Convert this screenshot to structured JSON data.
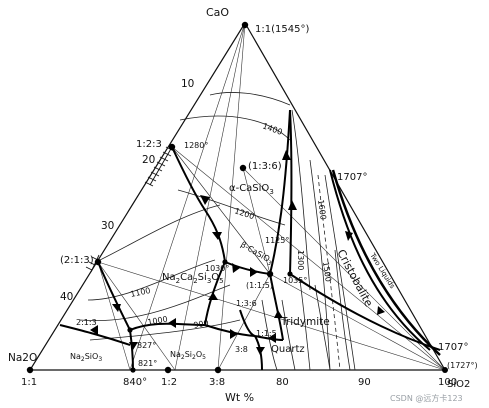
{
  "diagram": {
    "corners": {
      "top": "CaO",
      "left": "Na2O",
      "right": "SiO2"
    },
    "top_point_label": "1:1(1545°)",
    "axis_title": "Wt %",
    "left_ticks": [
      "10",
      "20",
      "30",
      "40"
    ],
    "bottom_ticks": [
      "1:1",
      "840°",
      "1:2",
      "3:8",
      "80",
      "90",
      "100"
    ],
    "right_temps": {
      "upper": "1707°",
      "lower": "1707°",
      "corner": "(1727°)"
    },
    "compounds": {
      "c123": "1:2:3",
      "c1280": "1280°",
      "c136": "(1:3:6)",
      "c213": "(2:1:3)",
      "alpha": "α-CaSiO",
      "alpha_sub": "3",
      "beta": "β-CaSiO",
      "beta_sub": "3",
      "nacaso_main": "Na",
      "nacaso_a": "2",
      "nacaso_b": "Ca",
      "nacaso_c": "2",
      "nacaso_d": "Si",
      "nacaso_e": "3",
      "nacaso_f": "O",
      "nacaso_g": "5",
      "c115a": "(1:1:5)",
      "c136b": "1:3:6",
      "c115b": "1:1:5",
      "c38": "3:8",
      "c213b": "2:1:3",
      "na2sio3": "Na",
      "na2sio3_s1": "2",
      "na2sio3_m": "SiO",
      "na2sio3_s2": "3",
      "na2si2o5": "Na",
      "na2si2o5_s1": "2",
      "na2si2o5_m": "Si",
      "na2si2o5_s2": "2",
      "na2si2o5_n": "O",
      "na2si2o5_s3": "5"
    },
    "phases": {
      "cristobalite": "Cristobalite",
      "tridymite": "Tridymite",
      "quartz": "Quartz",
      "two_liquids": "Two Liquids"
    },
    "temps": {
      "t1400": "1400",
      "t1200": "1200",
      "t1125": "1125°",
      "t1030": "1030°",
      "t1035": "1035°",
      "t1300": "1300",
      "t1600": "1600",
      "t1500": "1500",
      "t1100": "1100",
      "t1000": "1000",
      "t900": "900",
      "t827": "827°",
      "t821": "821°"
    },
    "watermark": "CSDN @远方卡123"
  }
}
